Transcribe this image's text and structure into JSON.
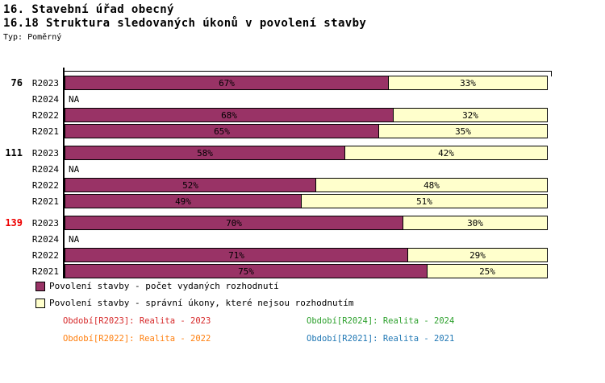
{
  "page": {
    "title": "16. Stavební úřad obecný",
    "subtitle": "16.18 Struktura sledovaných úkonů v povolení stavby",
    "type_label": "Typ: Poměrný"
  },
  "colors": {
    "series_decisions": "#993366",
    "series_non_decisions": "#FFFFCC",
    "group_label_highlight": "#EE0000"
  },
  "chart_data": {
    "type": "bar",
    "orientation": "horizontal",
    "stacked": true,
    "value_unit": "%",
    "xlim": [
      0,
      100
    ],
    "grid": false,
    "series": [
      {
        "name": "Povolení stavby - počet vydaných rozhodnutí",
        "color": "#993366"
      },
      {
        "name": "Povolení stavby - správní úkony, které nejsou rozhodnutím",
        "color": "#FFFFCC"
      }
    ],
    "groups": [
      {
        "label": "76",
        "highlight": false,
        "rows": [
          {
            "period": "R2023",
            "values": [
              67,
              33
            ]
          },
          {
            "period": "R2024",
            "values": null,
            "na_text": "NA"
          },
          {
            "period": "R2022",
            "values": [
              68,
              32
            ]
          },
          {
            "period": "R2021",
            "values": [
              65,
              35
            ]
          }
        ]
      },
      {
        "label": "111",
        "highlight": false,
        "rows": [
          {
            "period": "R2023",
            "values": [
              58,
              42
            ]
          },
          {
            "period": "R2024",
            "values": null,
            "na_text": "NA"
          },
          {
            "period": "R2022",
            "values": [
              52,
              48
            ]
          },
          {
            "period": "R2021",
            "values": [
              49,
              51
            ]
          }
        ]
      },
      {
        "label": "139",
        "highlight": true,
        "rows": [
          {
            "period": "R2023",
            "values": [
              70,
              30
            ]
          },
          {
            "period": "R2024",
            "values": null,
            "na_text": "NA"
          },
          {
            "period": "R2022",
            "values": [
              71,
              29
            ]
          },
          {
            "period": "R2021",
            "values": [
              75,
              25
            ]
          }
        ]
      }
    ]
  },
  "periods": [
    {
      "label": "Období[R2023]: Realita - 2023",
      "color": "#D62728"
    },
    {
      "label": "Období[R2024]: Realita - 2024",
      "color": "#2CA02C"
    },
    {
      "label": "Období[R2022]: Realita - 2022",
      "color": "#FF7F0E"
    },
    {
      "label": "Období[R2021]: Realita - 2021",
      "color": "#1F77B4"
    }
  ]
}
